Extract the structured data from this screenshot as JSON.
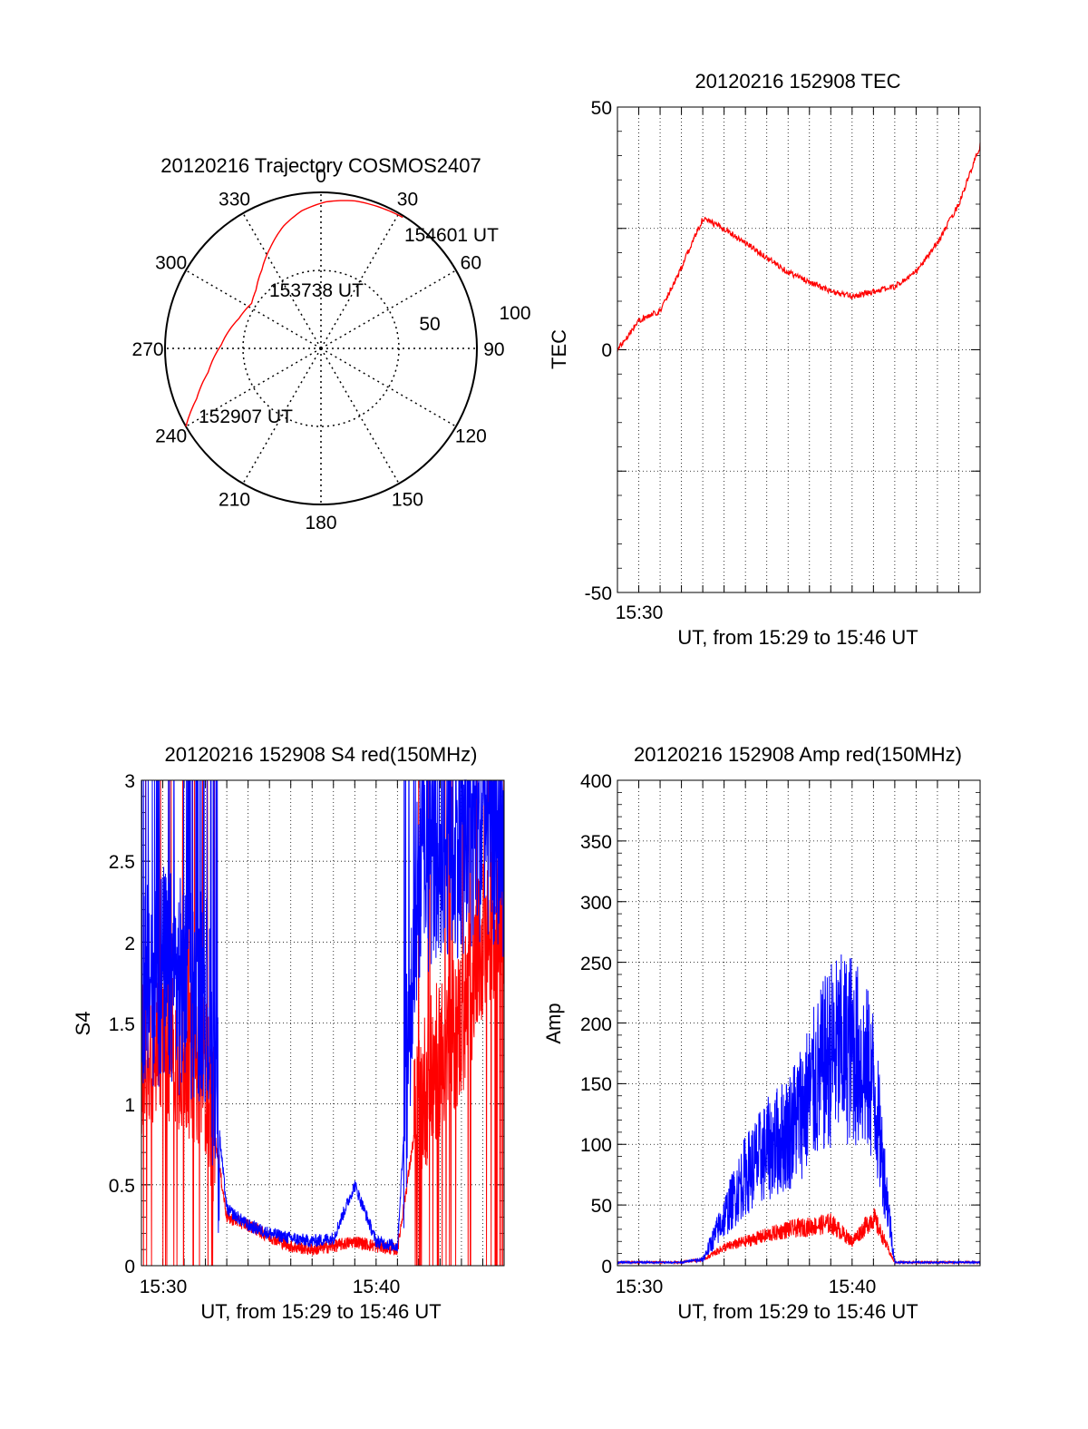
{
  "charts": {
    "trajectory": {
      "title": "20120216 Trajectory COSMOS2407",
      "azimuth_labels": [
        "0",
        "30",
        "60",
        "90",
        "120",
        "150",
        "180",
        "210",
        "240",
        "270",
        "300",
        "330"
      ],
      "elevation_labels": [
        "50",
        "100"
      ],
      "time_labels": [
        "154601 UT",
        "153738 UT",
        "152907 UT"
      ]
    },
    "tec": {
      "title": "20120216 152908 TEC",
      "ylabel": "TEC",
      "xlabel": "UT, from 15:29 to 15:46 UT",
      "yticks": [
        "50",
        "0",
        "-50"
      ],
      "xticks": [
        "15:30"
      ]
    },
    "s4": {
      "title": "20120216 152908 S4 red(150MHz)",
      "ylabel": "S4",
      "xlabel": "UT, from 15:29 to 15:46 UT",
      "yticks": [
        "3",
        "2.5",
        "2",
        "1.5",
        "1",
        "0.5",
        "0"
      ],
      "xticks": [
        "15:30",
        "15:40"
      ]
    },
    "amp": {
      "title": "20120216 152908 Amp red(150MHz)",
      "ylabel": "Amp",
      "xlabel": "UT, from 15:29 to 15:46 UT",
      "yticks": [
        "400",
        "350",
        "300",
        "250",
        "200",
        "150",
        "100",
        "50",
        "0"
      ],
      "xticks": [
        "15:30",
        "15:40"
      ]
    }
  },
  "chart_data": [
    {
      "type": "polar-trajectory",
      "title": "20120216 Trajectory COSMOS2407",
      "azimuth_ticks_deg": [
        0,
        30,
        60,
        90,
        120,
        150,
        180,
        210,
        240,
        270,
        300,
        330
      ],
      "elevation_rings": [
        50,
        100
      ],
      "series": [
        {
          "color": "#ff0000",
          "points": [
            {
              "az": 240,
              "r": 100
            },
            {
              "az": 248,
              "r": 86
            },
            {
              "az": 258,
              "r": 74
            },
            {
              "az": 272,
              "r": 64
            },
            {
              "az": 290,
              "r": 56
            },
            {
              "az": 303,
              "r": 53
            },
            {
              "az": 312,
              "r": 56
            },
            {
              "az": 323,
              "r": 63
            },
            {
              "az": 333,
              "r": 72
            },
            {
              "az": 343,
              "r": 82
            },
            {
              "az": 352,
              "r": 89
            },
            {
              "az": 2,
              "r": 94
            },
            {
              "az": 13,
              "r": 97
            },
            {
              "az": 23,
              "r": 98
            },
            {
              "az": 32,
              "r": 99
            }
          ]
        }
      ],
      "annotations": [
        {
          "text": "154601 UT",
          "az": 32,
          "r": 99
        },
        {
          "text": "153738 UT",
          "az": 303,
          "r": 53
        },
        {
          "text": "152907 UT",
          "az": 240,
          "r": 100
        }
      ]
    },
    {
      "type": "line",
      "title": "20120216 152908 TEC",
      "xlabel": "UT, from 15:29 to 15:46 UT",
      "ylabel": "TEC",
      "xlim": [
        "15:29",
        "15:46"
      ],
      "ylim": [
        -50,
        50
      ],
      "series": [
        {
          "color": "#ff0000",
          "x": [
            "15:29",
            "15:30",
            "15:31",
            "15:32",
            "15:33",
            "15:34",
            "15:35",
            "15:36",
            "15:37",
            "15:38",
            "15:39",
            "15:40",
            "15:41",
            "15:42",
            "15:43",
            "15:44",
            "15:45",
            "15:46"
          ],
          "y": [
            0,
            6,
            8,
            17,
            27,
            25,
            22,
            19,
            16,
            14,
            12,
            11,
            12,
            13,
            16,
            22,
            30,
            42
          ]
        }
      ]
    },
    {
      "type": "line",
      "title": "20120216 152908 S4 red(150MHz)",
      "xlabel": "UT, from 15:29 to 15:46 UT",
      "ylabel": "S4",
      "xlim": [
        "15:29",
        "15:46"
      ],
      "ylim": [
        0,
        3
      ],
      "series": [
        {
          "color": "#0000ff",
          "x": [
            "15:29",
            "15:30",
            "15:31",
            "15:32",
            "15:33",
            "15:34",
            "15:35",
            "15:36",
            "15:37",
            "15:38",
            "15:39",
            "15:40",
            "15:41",
            "15:42",
            "15:43",
            "15:44",
            "15:45",
            "15:46"
          ],
          "y": [
            1.8,
            1.8,
            1.7,
            1.7,
            0.35,
            0.25,
            0.2,
            0.17,
            0.15,
            0.17,
            0.5,
            0.15,
            0.12,
            2.4,
            2.6,
            2.6,
            2.7,
            2.6
          ]
        },
        {
          "color": "#ff0000",
          "x": [
            "15:29",
            "15:30",
            "15:31",
            "15:32",
            "15:33",
            "15:34",
            "15:35",
            "15:36",
            "15:37",
            "15:38",
            "15:39",
            "15:40",
            "15:41",
            "15:42",
            "15:43",
            "15:44",
            "15:45",
            "15:46"
          ],
          "y": [
            1.3,
            1.4,
            1.3,
            1.2,
            0.3,
            0.25,
            0.18,
            0.12,
            0.1,
            0.12,
            0.15,
            0.12,
            0.1,
            1.0,
            1.3,
            1.5,
            2.0,
            2.2
          ]
        }
      ]
    },
    {
      "type": "line",
      "title": "20120216 152908 Amp red(150MHz)",
      "xlabel": "UT, from 15:29 to 15:46 UT",
      "ylabel": "Amp",
      "xlim": [
        "15:29",
        "15:46"
      ],
      "ylim": [
        0,
        400
      ],
      "series": [
        {
          "color": "#0000ff",
          "x": [
            "15:29",
            "15:30",
            "15:31",
            "15:32",
            "15:33",
            "15:34",
            "15:35",
            "15:36",
            "15:37",
            "15:38",
            "15:39",
            "15:40",
            "15:41",
            "15:42",
            "15:43",
            "15:44",
            "15:45",
            "15:46"
          ],
          "y": [
            2,
            2,
            2,
            2,
            5,
            40,
            75,
            95,
            110,
            140,
            175,
            180,
            150,
            2,
            2,
            2,
            2,
            2
          ]
        },
        {
          "color": "#ff0000",
          "x": [
            "15:29",
            "15:30",
            "15:31",
            "15:32",
            "15:33",
            "15:34",
            "15:35",
            "15:36",
            "15:37",
            "15:38",
            "15:39",
            "15:40",
            "15:41",
            "15:42",
            "15:43",
            "15:44",
            "15:45",
            "15:46"
          ],
          "y": [
            2,
            2,
            2,
            2,
            5,
            15,
            20,
            25,
            30,
            32,
            35,
            20,
            40,
            2,
            2,
            2,
            2,
            2
          ]
        }
      ]
    }
  ]
}
